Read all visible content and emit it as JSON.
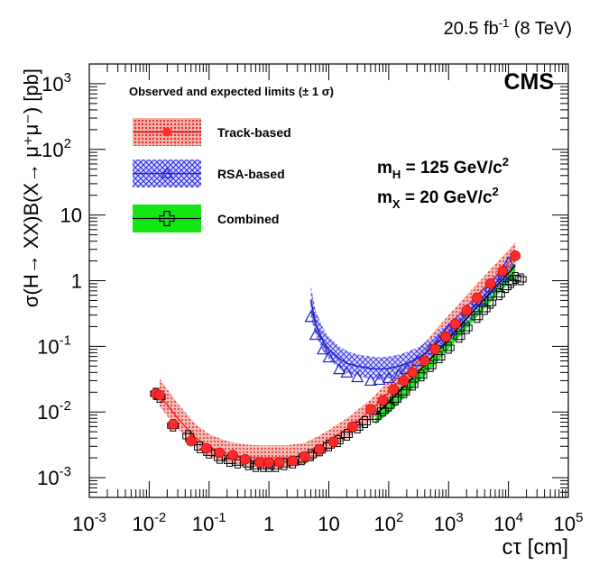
{
  "chart_data": {
    "type": "scatter",
    "lumi_label": {
      "base": "20.5 fb",
      "sup": "-1",
      "rest": " (8 TeV)"
    },
    "experiment_label": "CMS",
    "xlabel": "cτ [cm]",
    "ylabel": "σ(H→ XX)B(X→ μ⁺μ⁻) [pb]",
    "x_scale": "log",
    "y_scale": "log",
    "xlim": [
      0.001,
      100000
    ],
    "ylim": [
      0.0005,
      2000
    ],
    "x_ticks": [
      {
        "value": 0.001,
        "base": "10",
        "exp": "-3"
      },
      {
        "value": 0.01,
        "base": "10",
        "exp": "-2"
      },
      {
        "value": 0.1,
        "base": "10",
        "exp": "-1"
      },
      {
        "value": 1,
        "base": "1",
        "exp": ""
      },
      {
        "value": 10,
        "base": "10",
        "exp": ""
      },
      {
        "value": 100,
        "base": "10",
        "exp": "2"
      },
      {
        "value": 1000,
        "base": "10",
        "exp": "3"
      },
      {
        "value": 10000,
        "base": "10",
        "exp": "4"
      },
      {
        "value": 100000,
        "base": "10",
        "exp": "5"
      }
    ],
    "y_ticks": [
      {
        "value": 0.001,
        "base": "10",
        "exp": "-3"
      },
      {
        "value": 0.01,
        "base": "10",
        "exp": "-2"
      },
      {
        "value": 0.1,
        "base": "10",
        "exp": "-1"
      },
      {
        "value": 1,
        "base": "1",
        "exp": ""
      },
      {
        "value": 10,
        "base": "10",
        "exp": ""
      },
      {
        "value": 100,
        "base": "10",
        "exp": "2"
      },
      {
        "value": 1000,
        "base": "10",
        "exp": "3"
      }
    ],
    "legend": {
      "title": "Observed and expected limits (± 1 σ)",
      "placement": "top-left",
      "entries": [
        "Track-based",
        "RSA-based",
        "Combined"
      ]
    },
    "annotations": [
      {
        "text": "m",
        "sub": "H",
        "rest": " = 125 GeV/c",
        "sup": "2"
      },
      {
        "text": "m",
        "sub": "X",
        "rest": " = 20 GeV/c",
        "sup": "2"
      }
    ],
    "series": [
      {
        "name": "Track-based",
        "color": "#ff2a2a",
        "band_fill": "#e05050",
        "marker": "filled-circle",
        "expected": {
          "x": [
            0.015,
            0.03,
            0.06,
            0.1,
            0.2,
            0.4,
            0.7,
            1,
            2,
            4,
            8,
            20,
            50,
            100,
            300,
            1000,
            3000,
            13000
          ],
          "y": [
            0.018,
            0.008,
            0.004,
            0.0029,
            0.0023,
            0.00205,
            0.002,
            0.002,
            0.002,
            0.0022,
            0.0032,
            0.0055,
            0.0105,
            0.02,
            0.058,
            0.2,
            0.6,
            2.4
          ],
          "lo": [
            0.012,
            0.0055,
            0.0029,
            0.0021,
            0.0017,
            0.0015,
            0.00145,
            0.00145,
            0.00148,
            0.0016,
            0.0023,
            0.004,
            0.0075,
            0.0145,
            0.04,
            0.14,
            0.42,
            1.7
          ],
          "hi": [
            0.032,
            0.0135,
            0.0065,
            0.0046,
            0.0036,
            0.0032,
            0.0031,
            0.0031,
            0.0031,
            0.0034,
            0.0047,
            0.008,
            0.0155,
            0.03,
            0.085,
            0.3,
            0.9,
            3.8
          ]
        },
        "observed": {
          "x": [
            0.013,
            0.015,
            0.025,
            0.05,
            0.09,
            0.15,
            0.25,
            0.4,
            0.7,
            1,
            1.5,
            2.5,
            4,
            7,
            12,
            25,
            50,
            80,
            120,
            180,
            250,
            400,
            600,
            900,
            1300,
            2000,
            3000,
            5000,
            8000,
            13000
          ],
          "y": [
            0.019,
            0.018,
            0.0065,
            0.0036,
            0.0028,
            0.0024,
            0.0022,
            0.0019,
            0.0017,
            0.0017,
            0.0017,
            0.0018,
            0.0021,
            0.0027,
            0.0035,
            0.006,
            0.011,
            0.015,
            0.022,
            0.03,
            0.04,
            0.06,
            0.09,
            0.14,
            0.22,
            0.35,
            0.55,
            0.9,
            1.4,
            2.4
          ]
        }
      },
      {
        "name": "RSA-based",
        "color": "#2020d0",
        "band_fill": "#3a3aff",
        "marker": "open-triangle",
        "expected": {
          "x": [
            5,
            6,
            8,
            10,
            15,
            20,
            30,
            50,
            70,
            100,
            150,
            200,
            300,
            500,
            1000,
            2000,
            5000,
            10000
          ],
          "y": [
            0.5,
            0.22,
            0.12,
            0.09,
            0.065,
            0.055,
            0.05,
            0.046,
            0.045,
            0.046,
            0.05,
            0.055,
            0.065,
            0.09,
            0.16,
            0.3,
            0.75,
            1.5
          ],
          "lo": [
            0.28,
            0.15,
            0.085,
            0.063,
            0.046,
            0.039,
            0.035,
            0.032,
            0.031,
            0.032,
            0.035,
            0.04,
            0.047,
            0.065,
            0.115,
            0.22,
            0.55,
            1.1
          ],
          "hi": [
            0.85,
            0.35,
            0.19,
            0.14,
            0.1,
            0.085,
            0.075,
            0.07,
            0.068,
            0.07,
            0.075,
            0.082,
            0.095,
            0.13,
            0.23,
            0.43,
            1.05,
            2.1
          ]
        },
        "observed": {
          "x": [
            5,
            6,
            8,
            10,
            15,
            20,
            30,
            50,
            70,
            100,
            150,
            200,
            300,
            500,
            700,
            1000,
            2000,
            3000,
            5000,
            8000,
            10000
          ],
          "y": [
            0.28,
            0.15,
            0.09,
            0.068,
            0.045,
            0.04,
            0.034,
            0.03,
            0.031,
            0.033,
            0.038,
            0.045,
            0.06,
            0.09,
            0.12,
            0.18,
            0.35,
            0.5,
            0.8,
            1.2,
            1.9
          ]
        }
      },
      {
        "name": "Combined",
        "color": "#000000",
        "band_fill": "#14e614",
        "marker": "open-cross",
        "expected": {
          "x": [
            60,
            100,
            200,
            400,
            1000,
            3000,
            6000,
            10000,
            13000
          ],
          "y": [
            0.009,
            0.014,
            0.027,
            0.052,
            0.13,
            0.4,
            0.8,
            1.3,
            1.7
          ],
          "lo": [
            0.0065,
            0.0095,
            0.018,
            0.036,
            0.09,
            0.28,
            0.56,
            0.9,
            1.2
          ],
          "hi": [
            0.013,
            0.021,
            0.04,
            0.075,
            0.19,
            0.57,
            1.15,
            1.85,
            2.4
          ]
        },
        "observed": {
          "x": [
            0.013,
            0.015,
            0.025,
            0.045,
            0.07,
            0.1,
            0.15,
            0.22,
            0.3,
            0.45,
            0.6,
            0.8,
            1,
            1.3,
            1.8,
            2.5,
            3.5,
            5,
            7,
            10,
            14,
            20,
            30,
            40,
            60,
            80,
            100,
            130,
            180,
            250,
            350,
            500,
            700,
            1000,
            1500,
            2000,
            3000,
            4000,
            5000,
            7000,
            9000,
            11000,
            13000,
            16000
          ],
          "y": [
            0.019,
            0.017,
            0.0062,
            0.0043,
            0.0029,
            0.0024,
            0.002,
            0.0018,
            0.0017,
            0.0016,
            0.0015,
            0.0015,
            0.0015,
            0.0015,
            0.0016,
            0.0017,
            0.0019,
            0.0022,
            0.0026,
            0.0031,
            0.0036,
            0.0045,
            0.0058,
            0.007,
            0.0085,
            0.0105,
            0.0125,
            0.0155,
            0.02,
            0.026,
            0.036,
            0.05,
            0.068,
            0.095,
            0.14,
            0.19,
            0.28,
            0.37,
            0.46,
            0.62,
            0.8,
            0.95,
            1.1,
            1.05
          ]
        }
      }
    ]
  }
}
